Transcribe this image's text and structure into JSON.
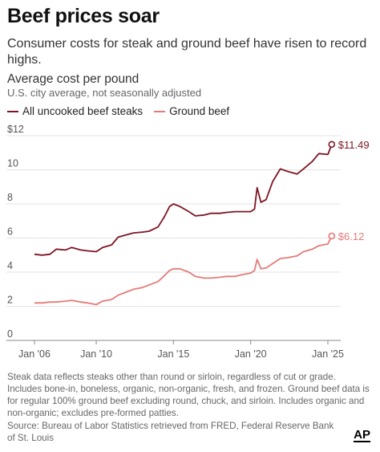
{
  "header": {
    "title": "Beef prices soar",
    "subtitle": "Consumer costs for steak and ground beef have risen to record highs."
  },
  "chart_header": {
    "title": "Average cost per pound",
    "subtitle": "U.S. city average, not seasonally adjusted"
  },
  "footer": {
    "note": "Steak data reflects steaks other than round or sirloin, regardless of cut or grade. Includes bone-in, boneless, organic, non-organic, fresh, and frozen. Ground beef data is for regular 100% ground beef excluding round, chuck, and sirloin. Includes organic and non-organic; excludes pre-formed patties.",
    "source": "Source: Bureau of Labor Statistics retrieved from FRED, Federal Reserve Bank of St. Louis",
    "logo": "AP"
  },
  "chart_data": {
    "type": "line",
    "ylim": [
      0,
      12
    ],
    "xlim": [
      "2006-01",
      "2025-06"
    ],
    "y_ticks": [
      "$12",
      "10",
      "8",
      "6",
      "4",
      "2",
      "0"
    ],
    "x_ticks": [
      "Jan '06",
      "Jan '10",
      "Jan '15",
      "Jan '20",
      "Jan '25"
    ],
    "grid": true,
    "legend_position": "top-left",
    "series": [
      {
        "name": "All uncooked beef steaks",
        "color": "#7d1523",
        "end_label": "$11.49",
        "points": [
          [
            "2006-01",
            5.05
          ],
          [
            "2006-07",
            5.0
          ],
          [
            "2007-01",
            5.05
          ],
          [
            "2007-06",
            5.35
          ],
          [
            "2008-01",
            5.3
          ],
          [
            "2008-06",
            5.45
          ],
          [
            "2009-01",
            5.3
          ],
          [
            "2009-06",
            5.25
          ],
          [
            "2010-01",
            5.2
          ],
          [
            "2010-06",
            5.45
          ],
          [
            "2011-01",
            5.6
          ],
          [
            "2011-06",
            6.05
          ],
          [
            "2012-01",
            6.2
          ],
          [
            "2012-06",
            6.3
          ],
          [
            "2013-01",
            6.35
          ],
          [
            "2013-06",
            6.4
          ],
          [
            "2014-01",
            6.65
          ],
          [
            "2014-06",
            7.25
          ],
          [
            "2014-10",
            7.85
          ],
          [
            "2015-01",
            8.0
          ],
          [
            "2015-06",
            7.85
          ],
          [
            "2016-01",
            7.55
          ],
          [
            "2016-06",
            7.3
          ],
          [
            "2017-01",
            7.35
          ],
          [
            "2017-06",
            7.45
          ],
          [
            "2018-01",
            7.45
          ],
          [
            "2018-06",
            7.5
          ],
          [
            "2019-01",
            7.55
          ],
          [
            "2019-06",
            7.55
          ],
          [
            "2020-01",
            7.55
          ],
          [
            "2020-04",
            7.7
          ],
          [
            "2020-06",
            8.95
          ],
          [
            "2020-09",
            8.1
          ],
          [
            "2021-01",
            8.25
          ],
          [
            "2021-06",
            9.3
          ],
          [
            "2021-12",
            10.05
          ],
          [
            "2022-06",
            9.9
          ],
          [
            "2023-01",
            9.75
          ],
          [
            "2023-06",
            10.05
          ],
          [
            "2024-01",
            10.5
          ],
          [
            "2024-06",
            10.95
          ],
          [
            "2025-01",
            10.9
          ],
          [
            "2025-04",
            11.49
          ]
        ]
      },
      {
        "name": "Ground beef",
        "color": "#e57a78",
        "end_label": "$6.12",
        "points": [
          [
            "2006-01",
            2.2
          ],
          [
            "2006-07",
            2.2
          ],
          [
            "2007-01",
            2.25
          ],
          [
            "2007-06",
            2.25
          ],
          [
            "2008-01",
            2.3
          ],
          [
            "2008-06",
            2.35
          ],
          [
            "2009-01",
            2.25
          ],
          [
            "2009-06",
            2.2
          ],
          [
            "2010-01",
            2.1
          ],
          [
            "2010-06",
            2.3
          ],
          [
            "2011-01",
            2.4
          ],
          [
            "2011-06",
            2.65
          ],
          [
            "2012-01",
            2.85
          ],
          [
            "2012-06",
            3.0
          ],
          [
            "2013-01",
            3.1
          ],
          [
            "2013-06",
            3.25
          ],
          [
            "2014-01",
            3.45
          ],
          [
            "2014-06",
            3.8
          ],
          [
            "2014-10",
            4.1
          ],
          [
            "2015-01",
            4.2
          ],
          [
            "2015-06",
            4.2
          ],
          [
            "2016-01",
            4.0
          ],
          [
            "2016-06",
            3.75
          ],
          [
            "2017-01",
            3.65
          ],
          [
            "2017-06",
            3.65
          ],
          [
            "2018-01",
            3.7
          ],
          [
            "2018-06",
            3.75
          ],
          [
            "2019-01",
            3.75
          ],
          [
            "2019-06",
            3.85
          ],
          [
            "2020-01",
            3.95
          ],
          [
            "2020-04",
            4.1
          ],
          [
            "2020-06",
            4.75
          ],
          [
            "2020-09",
            4.2
          ],
          [
            "2021-01",
            4.25
          ],
          [
            "2021-06",
            4.5
          ],
          [
            "2021-12",
            4.8
          ],
          [
            "2022-06",
            4.85
          ],
          [
            "2023-01",
            4.95
          ],
          [
            "2023-06",
            5.2
          ],
          [
            "2024-01",
            5.35
          ],
          [
            "2024-06",
            5.55
          ],
          [
            "2025-01",
            5.65
          ],
          [
            "2025-04",
            6.12
          ]
        ]
      }
    ]
  }
}
